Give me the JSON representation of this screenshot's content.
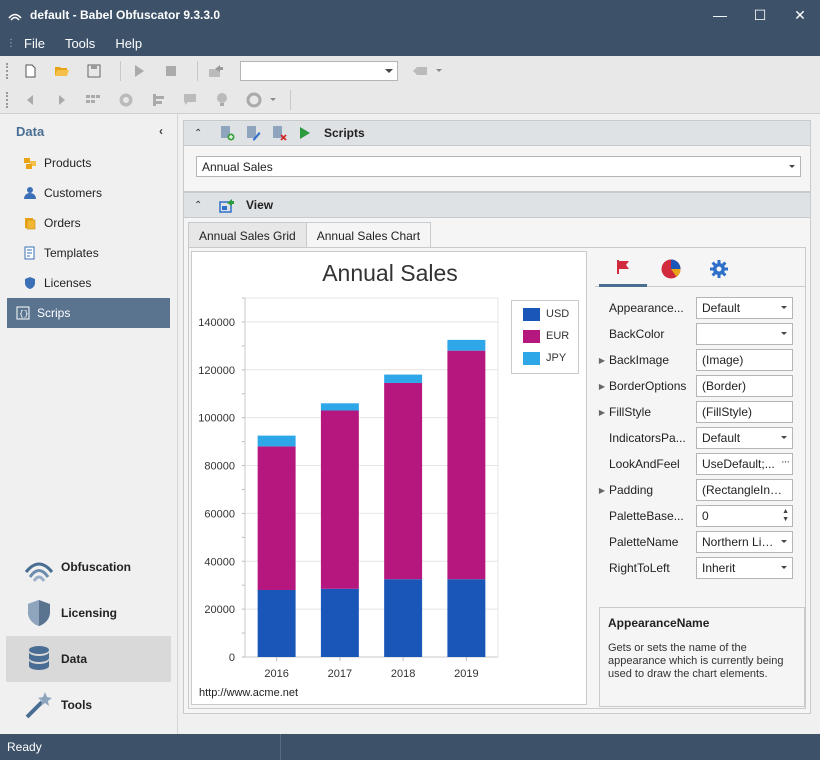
{
  "window": {
    "title": "default -  Babel Obfuscator 9.3.3.0",
    "minimize_glyph": "—",
    "maximize_glyph": "☐",
    "close_glyph": "✕"
  },
  "menu": {
    "items": [
      "File",
      "Tools",
      "Help"
    ]
  },
  "toolbar": {
    "combo_value": ""
  },
  "leftnav": {
    "header": "Data",
    "collapse_glyph": "‹",
    "items": [
      {
        "label": "Products",
        "icon": "products-icon"
      },
      {
        "label": "Customers",
        "icon": "customers-icon"
      },
      {
        "label": "Orders",
        "icon": "orders-icon"
      },
      {
        "label": "Templates",
        "icon": "templates-icon"
      },
      {
        "label": "Licenses",
        "icon": "licenses-icon"
      },
      {
        "label": "Scrips",
        "icon": "scripts-icon",
        "selected": true
      }
    ],
    "groups": [
      {
        "label": "Obfuscation",
        "icon": "obfuscation-icon"
      },
      {
        "label": "Licensing",
        "icon": "licensing-icon"
      },
      {
        "label": "Data",
        "icon": "data-icon",
        "selected": true
      },
      {
        "label": "Tools",
        "icon": "tools-icon"
      }
    ]
  },
  "scripts_panel": {
    "title": "Scripts",
    "chevron": "⌃",
    "selected_script": "Annual Sales"
  },
  "view_panel": {
    "title": "View",
    "chevron": "⌃",
    "tabs": [
      "Annual Sales Grid",
      "Annual Sales Chart"
    ],
    "active_tab": 1
  },
  "chart_data": {
    "type": "bar",
    "stacked": true,
    "title": "Annual Sales",
    "categories": [
      "2016",
      "2017",
      "2018",
      "2019"
    ],
    "series": [
      {
        "name": "USD",
        "color": "#1a56b8",
        "values": [
          28000,
          28500,
          32500,
          32500
        ]
      },
      {
        "name": "EUR",
        "color": "#b5177e",
        "values": [
          60000,
          74500,
          82000,
          95500
        ]
      },
      {
        "name": "JPY",
        "color": "#2ea7e8",
        "values": [
          4500,
          3000,
          3500,
          4500
        ]
      }
    ],
    "ylim": [
      0,
      150000
    ],
    "yticks": [
      "0",
      "20000",
      "40000",
      "60000",
      "80000",
      "100000",
      "120000",
      "140000"
    ],
    "ytick_values": [
      0,
      20000,
      40000,
      60000,
      80000,
      100000,
      120000,
      140000
    ],
    "grid": true,
    "legend_position": "top-right",
    "footer": "http://www.acme.net"
  },
  "properties": {
    "rows": [
      {
        "name": "Appearance...",
        "value": "Default",
        "expandable": false,
        "editor": "dropdown"
      },
      {
        "name": "BackColor",
        "value": "",
        "expandable": false,
        "editor": "dropdown"
      },
      {
        "name": "BackImage",
        "value": "(Image)",
        "expandable": true,
        "editor": "text"
      },
      {
        "name": "BorderOptions",
        "value": "(Border)",
        "expandable": true,
        "editor": "text"
      },
      {
        "name": "FillStyle",
        "value": "(FillStyle)",
        "expandable": true,
        "editor": "text"
      },
      {
        "name": "IndicatorsPa...",
        "value": "Default",
        "expandable": false,
        "editor": "dropdown"
      },
      {
        "name": "LookAndFeel",
        "value": "UseDefault;...",
        "expandable": false,
        "editor": "ellipsis"
      },
      {
        "name": "Padding",
        "value": "(RectangleInde...",
        "expandable": true,
        "editor": "text"
      },
      {
        "name": "PaletteBase...",
        "value": "0",
        "expandable": false,
        "editor": "spin"
      },
      {
        "name": "PaletteName",
        "value": "Northern Lig...",
        "expandable": false,
        "editor": "dropdown"
      },
      {
        "name": "RightToLeft",
        "value": "Inherit",
        "expandable": false,
        "editor": "dropdown"
      }
    ],
    "description_title": "AppearanceName",
    "description_text": "Gets or sets the name of the appearance which is currently being used to draw the chart elements."
  },
  "status": {
    "text": "Ready"
  }
}
